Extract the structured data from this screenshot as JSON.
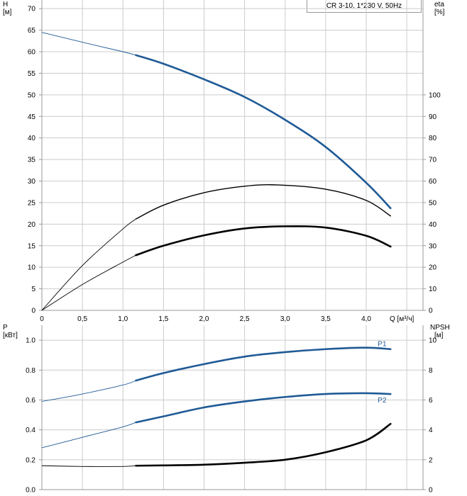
{
  "title": "CR 3-10, 1*230 V, 50Hz",
  "colors": {
    "blue": "#1f5a96",
    "black": "#000000",
    "grid": "#cccccc",
    "frame": "#999999"
  },
  "chart_data": [
    {
      "type": "line",
      "name": "head-efficiency",
      "x_label": "Q [м³/ч]",
      "y_left_label": [
        "H",
        "[м]"
      ],
      "y_right_label": [
        "eta",
        "[%]"
      ],
      "xlim": [
        0,
        4.7
      ],
      "ylim_left": [
        0,
        72
      ],
      "ylim_right": [
        0,
        144
      ],
      "x_ticks": [
        "0",
        "0,5",
        "1,0",
        "1,5",
        "2,0",
        "2,5",
        "3,0",
        "3,5",
        "4,0"
      ],
      "y_left_ticks": [
        "0",
        "5",
        "10",
        "15",
        "20",
        "25",
        "30",
        "35",
        "40",
        "45",
        "50",
        "55",
        "60",
        "65",
        "70"
      ],
      "y_right_ticks": [
        "0",
        "10",
        "20",
        "30",
        "40",
        "50",
        "60",
        "70",
        "80",
        "90",
        "100"
      ],
      "duty_range": [
        1.16,
        4.3
      ],
      "series": [
        {
          "id": "head",
          "axis": "left",
          "color": "blue",
          "x": [
            0,
            0.5,
            1.0,
            1.16,
            1.5,
            2.0,
            2.5,
            3.0,
            3.5,
            4.0,
            4.3
          ],
          "y": [
            64.5,
            62.2,
            60.0,
            59.2,
            57.2,
            53.6,
            49.5,
            44.2,
            37.9,
            29.6,
            23.7
          ]
        },
        {
          "id": "eta-curve-1",
          "axis": "left",
          "color": "black",
          "x": [
            0,
            0.5,
            1.0,
            1.16,
            1.5,
            2.0,
            2.5,
            2.9,
            3.5,
            4.0,
            4.3
          ],
          "y": [
            0,
            10.4,
            18.9,
            21.2,
            24.4,
            27.3,
            28.8,
            29.1,
            28.1,
            25.5,
            21.9
          ]
        },
        {
          "id": "eta-curve-2",
          "axis": "left",
          "color": "black",
          "x": [
            0,
            0.5,
            1.0,
            1.16,
            1.5,
            2.0,
            2.5,
            3.0,
            3.5,
            4.0,
            4.3
          ],
          "y": [
            0,
            6.0,
            11.2,
            12.8,
            15.0,
            17.4,
            19.0,
            19.5,
            19.2,
            17.3,
            14.8
          ]
        }
      ]
    },
    {
      "type": "line",
      "name": "power-npsh",
      "y_left_label": [
        "P",
        "[кВт]"
      ],
      "y_right_label": [
        "NPSH",
        "[м]"
      ],
      "xlim": [
        0,
        4.7
      ],
      "ylim_left": [
        0,
        1.1
      ],
      "ylim_right": [
        0,
        11
      ],
      "y_left_ticks": [
        "0.0",
        "0.2",
        "0.4",
        "0.6",
        "0.8",
        "1.0"
      ],
      "y_right_ticks": [
        "0",
        "2",
        "4",
        "6",
        "8",
        "10"
      ],
      "duty_range": [
        1.16,
        4.3
      ],
      "series": [
        {
          "id": "P1",
          "name": "P1",
          "axis": "left",
          "color": "blue",
          "x": [
            0,
            0.5,
            1.0,
            1.16,
            1.5,
            2.0,
            2.5,
            3.0,
            3.5,
            4.0,
            4.3
          ],
          "y": [
            0.59,
            0.64,
            0.7,
            0.73,
            0.78,
            0.84,
            0.89,
            0.92,
            0.94,
            0.95,
            0.94
          ]
        },
        {
          "id": "P2",
          "name": "P2",
          "axis": "left",
          "color": "blue",
          "x": [
            0,
            0.5,
            1.0,
            1.16,
            1.5,
            2.0,
            2.5,
            3.0,
            3.5,
            4.0,
            4.3
          ],
          "y": [
            0.28,
            0.35,
            0.42,
            0.45,
            0.49,
            0.55,
            0.59,
            0.62,
            0.64,
            0.645,
            0.64
          ]
        },
        {
          "id": "NPSH",
          "axis": "right",
          "color": "black",
          "x": [
            0,
            0.5,
            1.0,
            1.16,
            1.5,
            2.0,
            2.5,
            3.0,
            3.5,
            4.0,
            4.3
          ],
          "y": [
            1.6,
            1.55,
            1.55,
            1.6,
            1.62,
            1.67,
            1.8,
            2.0,
            2.5,
            3.3,
            4.4
          ]
        }
      ]
    }
  ]
}
